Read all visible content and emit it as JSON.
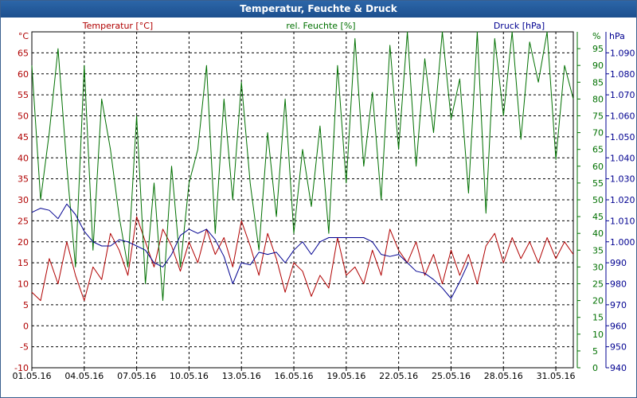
{
  "window": {
    "title": "Temperatur, Feuchte & Druck"
  },
  "legend": {
    "temperature": "Temperatur [°C]",
    "humidity": "rel. Feuchte [%]",
    "pressure": "Druck [hPa]"
  },
  "colors": {
    "temperature": "#b00000",
    "humidity": "#007000",
    "pressure": "#000090",
    "grid": "#000000",
    "title_bar": "#1f5a9c"
  },
  "chart_data": {
    "type": "line",
    "title": "Temperatur, Feuchte & Druck",
    "x": [
      1,
      1.5,
      2,
      2.5,
      3,
      3.5,
      4,
      4.5,
      5,
      5.5,
      6,
      6.5,
      7,
      7.5,
      8,
      8.5,
      9,
      9.5,
      10,
      10.5,
      11,
      11.5,
      12,
      12.5,
      13,
      13.5,
      14,
      14.5,
      15,
      15.5,
      16,
      16.5,
      17,
      17.5,
      18,
      18.5,
      19,
      19.5,
      20,
      20.5,
      21,
      21.5,
      22,
      22.5,
      23,
      23.5,
      24,
      24.5,
      25,
      25.5,
      26,
      26.5,
      27,
      27.5,
      28,
      28.5,
      29,
      29.5,
      30,
      30.5,
      31,
      31.5,
      32
    ],
    "xlim": [
      1,
      32
    ],
    "x_ticks": [
      "01.05.16",
      "04.05.16",
      "07.05.16",
      "10.05.16",
      "13.05.16",
      "16.05.16",
      "19.05.16",
      "22.05.16",
      "25.05.16",
      "28.05.16",
      "31.05.16"
    ],
    "x_tick_days": [
      1,
      4,
      7,
      10,
      13,
      16,
      19,
      22,
      25,
      28,
      31
    ],
    "series": [
      {
        "name": "Temperatur [°C]",
        "axis": "left",
        "values": [
          8,
          6,
          16,
          10,
          20,
          12,
          6,
          14,
          11,
          22,
          18,
          12,
          26,
          20,
          14,
          23,
          19,
          13,
          20,
          15,
          23,
          17,
          21,
          14,
          25,
          19,
          12,
          22,
          16,
          8,
          15,
          13,
          7,
          12,
          9,
          21,
          12,
          14,
          10,
          18,
          12,
          23,
          18,
          15,
          20,
          12,
          17,
          10,
          18,
          12,
          17,
          10,
          19,
          22,
          15,
          21,
          16,
          20,
          15,
          21,
          16,
          20,
          17
        ],
        "ylim": [
          -10,
          70
        ],
        "yunit": "°C"
      },
      {
        "name": "rel. Feuchte [%]",
        "axis": "right1",
        "values": [
          90,
          50,
          70,
          95,
          60,
          30,
          90,
          35,
          80,
          65,
          45,
          30,
          75,
          25,
          55,
          20,
          60,
          30,
          55,
          65,
          90,
          40,
          80,
          50,
          85,
          55,
          35,
          70,
          45,
          80,
          40,
          65,
          48,
          72,
          40,
          90,
          55,
          98,
          60,
          82,
          50,
          96,
          65,
          100,
          60,
          92,
          70,
          100,
          74,
          86,
          52,
          100,
          46,
          98,
          75,
          100,
          68,
          97,
          85,
          100,
          62,
          90,
          80
        ],
        "ylim": [
          0,
          100
        ],
        "yunit": "%"
      },
      {
        "name": "Druck [hPa]",
        "axis": "right2",
        "values": [
          1014,
          1016,
          1015,
          1011,
          1018,
          1013,
          1005,
          1000,
          998,
          998,
          1001,
          1000,
          998,
          996,
          990,
          988,
          994,
          1003,
          1006,
          1004,
          1006,
          1001,
          993,
          980,
          990,
          989,
          995,
          994,
          995,
          990,
          996,
          1000,
          994,
          1000,
          1002,
          1002,
          1002,
          1002,
          1002,
          1000,
          994,
          993,
          994,
          990,
          986,
          985,
          982,
          978,
          973,
          981,
          990
        ],
        "x_values": [
          1,
          1.5,
          2,
          2.5,
          3,
          3.5,
          4,
          4.5,
          5,
          5.5,
          6,
          6.5,
          7,
          7.5,
          8,
          8.5,
          9,
          9.5,
          10,
          10.5,
          11,
          11.5,
          12,
          12.5,
          13,
          13.5,
          14,
          14.5,
          15,
          15.5,
          16,
          16.5,
          17,
          17.5,
          18,
          18.5,
          19,
          19.5,
          20,
          20.5,
          21,
          21.5,
          22,
          22.5,
          23,
          23.5,
          24,
          24.5,
          25,
          25.5,
          26
        ],
        "ylim": [
          940,
          1100
        ],
        "yunit": "hPa"
      }
    ],
    "left_axis": {
      "unit": "°C",
      "ticks": [
        "-10",
        "-5",
        "0",
        "5",
        "10",
        "15",
        "20",
        "25",
        "30",
        "35",
        "40",
        "45",
        "50",
        "55",
        "60",
        "65"
      ]
    },
    "right_axis_1": {
      "unit": "%",
      "ticks": [
        "0",
        "5",
        "10",
        "15",
        "20",
        "25",
        "30",
        "35",
        "40",
        "45",
        "50",
        "55",
        "60",
        "65",
        "70",
        "75",
        "80",
        "85",
        "90",
        "95"
      ]
    },
    "right_axis_2": {
      "unit": "hPa",
      "ticks": [
        "940",
        "950",
        "960",
        "970",
        "980",
        "990",
        "1.000",
        "1.010",
        "1.020",
        "1.030",
        "1.040",
        "1.050",
        "1.060",
        "1.070",
        "1.080",
        "1.090"
      ]
    },
    "grid": true
  }
}
